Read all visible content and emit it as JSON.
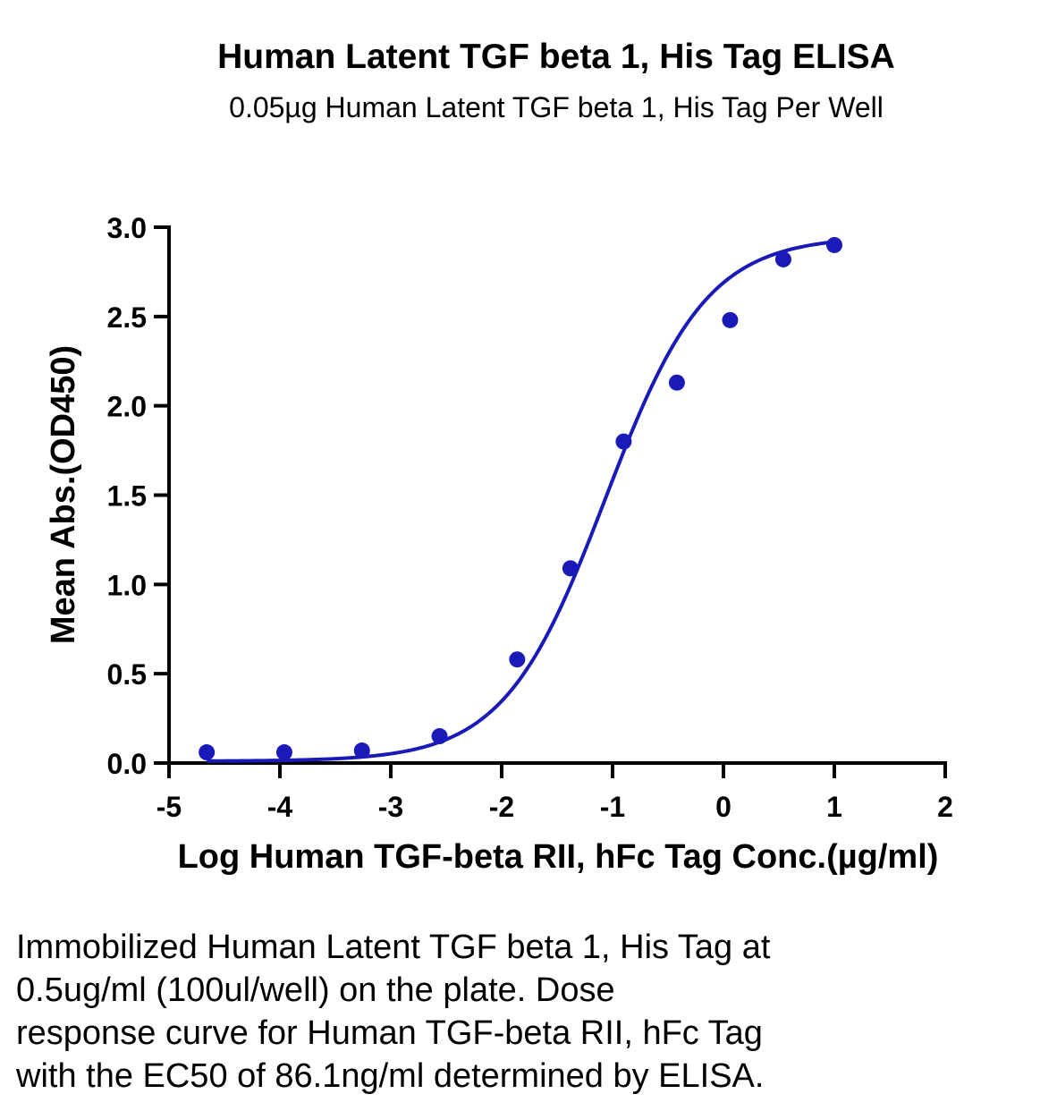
{
  "title": "Human Latent TGF beta 1, His Tag ELISA",
  "subtitle": "0.05µg Human Latent TGF beta 1, His Tag Per Well",
  "caption_lines": [
    "Immobilized Human Latent TGF beta 1, His Tag at",
    "0.5ug/ml (100ul/well) on the plate. Dose",
    "response curve for Human TGF-beta RII, hFc Tag",
    "with the EC50 of 86.1ng/ml determined by ELISA."
  ],
  "chart_data": {
    "type": "scatter",
    "title": "Human Latent TGF beta 1, His Tag ELISA",
    "subtitle": "0.05µg Human Latent TGF beta 1, His Tag Per Well",
    "xlabel": "Log Human TGF-beta RII, hFc Tag Conc.(µg/ml)",
    "ylabel": "Mean Abs.(OD450)",
    "xlim": [
      -5,
      2
    ],
    "ylim": [
      0,
      3.0
    ],
    "x_ticks": [
      -5,
      -4,
      -3,
      -2,
      -1,
      0,
      1,
      2
    ],
    "x_tick_labels": [
      "-5",
      "-4",
      "-3",
      "-2",
      "-1",
      "0",
      "1",
      "2"
    ],
    "y_ticks": [
      0,
      0.5,
      1.0,
      1.5,
      2.0,
      2.5,
      3.0
    ],
    "y_tick_labels": [
      "0.0",
      "0.5",
      "1.0",
      "1.5",
      "2.0",
      "2.5",
      "3.0"
    ],
    "grid": false,
    "color": "#1a1ab8",
    "points": [
      {
        "x": -4.66,
        "y": 0.06
      },
      {
        "x": -3.96,
        "y": 0.06
      },
      {
        "x": -3.26,
        "y": 0.07
      },
      {
        "x": -2.56,
        "y": 0.15
      },
      {
        "x": -1.86,
        "y": 0.58
      },
      {
        "x": -1.38,
        "y": 1.09
      },
      {
        "x": -0.9,
        "y": 1.8
      },
      {
        "x": -0.42,
        "y": 2.13
      },
      {
        "x": 0.06,
        "y": 2.48
      },
      {
        "x": 0.54,
        "y": 2.82
      },
      {
        "x": 1.0,
        "y": 2.9
      }
    ],
    "fit_curve": {
      "model": "4PL",
      "bottom": 0.01,
      "top": 2.95,
      "logEC50": -1.065,
      "hill": 0.95,
      "x_range": [
        -4.66,
        1.0
      ]
    }
  }
}
